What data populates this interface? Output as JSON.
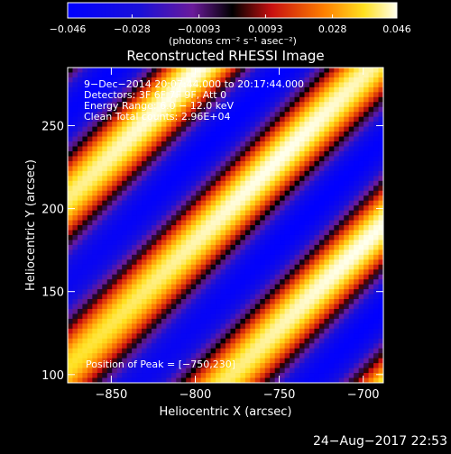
{
  "chart_data": {
    "type": "heatmap",
    "title": "Reconstructed RHESSI Image",
    "xlabel": "Heliocentric X (arcsec)",
    "ylabel": "Heliocentric Y (arcsec)",
    "xlim": [
      -876,
      -688
    ],
    "ylim": [
      95,
      285
    ],
    "x_ticks": [
      -850,
      -800,
      -750,
      -700
    ],
    "y_ticks": [
      100,
      150,
      200,
      250
    ],
    "x_tick_labels": [
      "−850",
      "−800",
      "−750",
      "−700"
    ],
    "y_tick_labels": [
      "100",
      "150",
      "200",
      "250"
    ],
    "colorbar": {
      "range": [
        -0.046,
        0.046
      ],
      "tick_values": [
        -0.046,
        -0.028,
        -0.0093,
        0.0093,
        0.028,
        0.046
      ],
      "tick_labels": [
        "−0.046",
        "−0.028",
        "−0.0093",
        "0.0093",
        "0.028",
        "0.046"
      ],
      "unit_label": "(photons cm⁻² s⁻¹ asec⁻²)"
    },
    "info_lines": [
      "9−Dec−2014 20:07:44.000 to 20:17:44.000",
      "Detectors: 3F 6F 7F 9F, Att 0",
      "Energy Range: 6.0 − 12.0 keV",
      "Clean     Total counts: 2.96E+04"
    ],
    "peak_text": "Position of Peak = [−750,230]",
    "peak_position": [
      -750,
      230
    ],
    "pattern": {
      "ridge_slope": 1,
      "ridge_offset_at_peak": 980,
      "period_arcsec": 72
    }
  },
  "footer": {
    "timestamp": "24−Aug−2017 22:53"
  }
}
